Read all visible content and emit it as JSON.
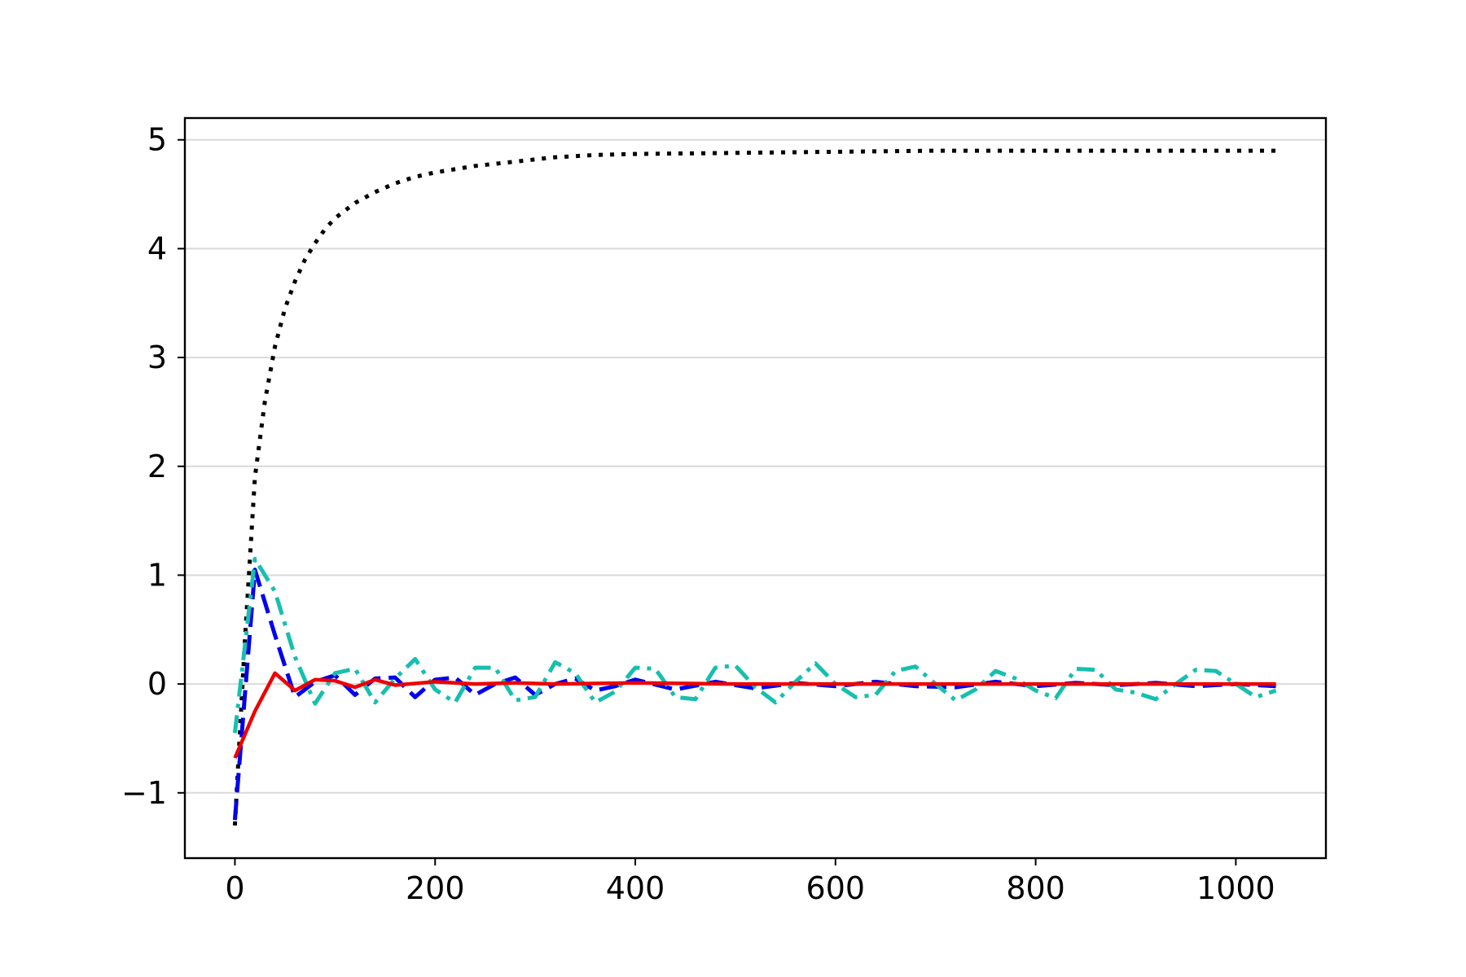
{
  "chart_data": {
    "type": "line",
    "title": "",
    "xlabel": "",
    "ylabel": "",
    "xlim": [
      -50,
      1090
    ],
    "ylim": [
      -1.6,
      5.2
    ],
    "x_ticks": [
      0,
      200,
      400,
      600,
      800,
      1000
    ],
    "x_tick_labels": [
      "0",
      "200",
      "400",
      "600",
      "800",
      "1000"
    ],
    "y_ticks": [
      -1,
      0,
      1,
      2,
      3,
      4,
      5
    ],
    "y_tick_labels": [
      "−1",
      "0",
      "1",
      "2",
      "3",
      "4",
      "5"
    ],
    "grid": "horizontal",
    "legend": "none",
    "series": [
      {
        "color": "#000000",
        "style": "dotted",
        "x": [
          0,
          10,
          20,
          30,
          40,
          50,
          60,
          70,
          80,
          90,
          100,
          120,
          140,
          160,
          180,
          200,
          240,
          280,
          320,
          360,
          400,
          500,
          600,
          700,
          800,
          900,
          1000,
          1040
        ],
        "values": [
          -1.3,
          0.4,
          1.9,
          2.6,
          3.1,
          3.45,
          3.7,
          3.9,
          4.05,
          4.18,
          4.28,
          4.42,
          4.52,
          4.6,
          4.66,
          4.7,
          4.76,
          4.8,
          4.84,
          4.86,
          4.87,
          4.88,
          4.89,
          4.9,
          4.9,
          4.9,
          4.9,
          4.9
        ]
      },
      {
        "color": "#0000ee",
        "style": "dashed",
        "x": [
          0,
          20,
          40,
          60,
          80,
          100,
          120,
          140,
          160,
          180,
          200,
          220,
          240,
          260,
          280,
          300,
          320,
          340,
          360,
          380,
          400,
          440,
          480,
          520,
          560,
          600,
          640,
          680,
          720,
          760,
          800,
          840,
          880,
          920,
          960,
          1000,
          1040
        ],
        "values": [
          -1.25,
          1.05,
          0.45,
          -0.12,
          0.02,
          0.08,
          -0.1,
          0.05,
          0.06,
          -0.12,
          0.04,
          0.06,
          -0.1,
          0.0,
          0.06,
          -0.1,
          0.0,
          0.05,
          -0.06,
          -0.02,
          0.04,
          -0.05,
          0.02,
          -0.04,
          0.01,
          -0.02,
          0.02,
          -0.02,
          -0.03,
          0.02,
          -0.02,
          0.01,
          -0.01,
          0.01,
          -0.02,
          0.0,
          -0.02
        ]
      },
      {
        "color": "#17bfae",
        "style": "dashdot",
        "x": [
          0,
          20,
          40,
          60,
          80,
          100,
          120,
          140,
          160,
          180,
          200,
          220,
          240,
          260,
          280,
          300,
          320,
          340,
          360,
          380,
          400,
          420,
          440,
          460,
          480,
          500,
          520,
          540,
          560,
          580,
          600,
          620,
          640,
          660,
          680,
          700,
          720,
          740,
          760,
          780,
          800,
          820,
          840,
          860,
          880,
          900,
          920,
          940,
          960,
          980,
          1000,
          1020,
          1040
        ],
        "values": [
          -0.45,
          1.15,
          0.85,
          0.25,
          -0.18,
          0.1,
          0.14,
          -0.17,
          0.05,
          0.23,
          -0.05,
          -0.17,
          0.15,
          0.15,
          -0.15,
          -0.12,
          0.2,
          0.1,
          -0.17,
          -0.07,
          0.15,
          0.14,
          -0.12,
          -0.14,
          0.15,
          0.17,
          -0.03,
          -0.17,
          0.02,
          0.19,
          0.0,
          -0.12,
          -0.1,
          0.12,
          0.16,
          0.0,
          -0.15,
          -0.05,
          0.12,
          0.05,
          -0.06,
          -0.13,
          0.14,
          0.13,
          -0.05,
          -0.08,
          -0.14,
          0.0,
          0.13,
          0.12,
          0.0,
          -0.12,
          -0.06
        ]
      },
      {
        "color": "#ee0000",
        "style": "solid",
        "x": [
          0,
          20,
          40,
          60,
          80,
          100,
          120,
          140,
          160,
          200,
          240,
          280,
          320,
          400,
          500,
          600,
          700,
          800,
          900,
          1000,
          1040
        ],
        "values": [
          -0.68,
          -0.25,
          0.1,
          -0.06,
          0.04,
          0.03,
          -0.03,
          0.04,
          -0.01,
          0.02,
          0.0,
          0.01,
          0.0,
          0.01,
          0.0,
          0.0,
          0.0,
          0.0,
          0.0,
          0.0,
          0.0
        ]
      }
    ]
  }
}
